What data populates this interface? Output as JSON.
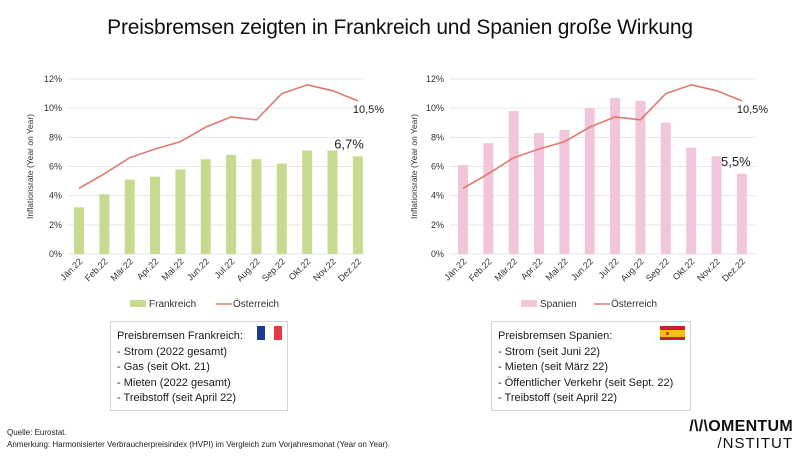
{
  "title": "Preisbremsen zeigten in Frankreich und Spanien große Wirkung",
  "colors": {
    "frankreich_bar": "#c8da8f",
    "spanien_bar": "#f1c6da",
    "oesterreich_line": "#e07a70",
    "grid": "#e6e6e6",
    "flag_fr_blue": "#1f3a93",
    "flag_fr_red": "#e63946",
    "flag_es_red": "#c8202e",
    "flag_es_yellow": "#f4c300"
  },
  "chart_data": [
    {
      "type": "bar",
      "title": "",
      "xlabel": "",
      "ylabel": "Inflationsrate (Year on Year)",
      "ylim": [
        0,
        12
      ],
      "yticks": [
        "0%",
        "2%",
        "4%",
        "6%",
        "8%",
        "10%",
        "12%"
      ],
      "grid": true,
      "legend": "bottom",
      "categories": [
        "Jän.22",
        "Feb.22",
        "Mär.22",
        "Apr.22",
        "Mai.22",
        "Jun.22",
        "Jul.22",
        "Aug.22",
        "Sep.22",
        "Okt.22",
        "Nov.22",
        "Dez.22"
      ],
      "series": [
        {
          "name": "Frankreich",
          "type": "bar",
          "values": [
            3.2,
            4.1,
            5.1,
            5.3,
            5.8,
            6.5,
            6.8,
            6.5,
            6.2,
            7.1,
            7.1,
            6.7
          ]
        },
        {
          "name": "Österreich",
          "type": "line",
          "values": [
            4.5,
            5.5,
            6.6,
            7.2,
            7.7,
            8.7,
            9.4,
            9.2,
            11.0,
            11.6,
            11.2,
            10.5
          ]
        }
      ],
      "annotations": [
        {
          "series": "Österreich",
          "category": "Dez.22",
          "text": "10,5%"
        },
        {
          "series": "Frankreich",
          "category": "Dez.22",
          "text": "6,7%"
        }
      ]
    },
    {
      "type": "bar",
      "title": "",
      "xlabel": "",
      "ylabel": "Inflationsrate (Year on Year)",
      "ylim": [
        0,
        12
      ],
      "yticks": [
        "0%",
        "2%",
        "4%",
        "6%",
        "8%",
        "10%",
        "12%"
      ],
      "grid": true,
      "legend": "bottom",
      "categories": [
        "Jän.22",
        "Feb.22",
        "Mär.22",
        "Apr.22",
        "Mai.22",
        "Jun.22",
        "Jul.22",
        "Aug.22",
        "Sep.22",
        "Okt.22",
        "Nov.22",
        "Dez.22"
      ],
      "series": [
        {
          "name": "Spanien",
          "type": "bar",
          "values": [
            6.1,
            7.6,
            9.8,
            8.3,
            8.5,
            10.0,
            10.7,
            10.5,
            9.0,
            7.3,
            6.7,
            5.5
          ]
        },
        {
          "name": "Österreich",
          "type": "line",
          "values": [
            4.5,
            5.5,
            6.6,
            7.2,
            7.7,
            8.7,
            9.4,
            9.2,
            11.0,
            11.6,
            11.2,
            10.5
          ]
        }
      ],
      "annotations": [
        {
          "series": "Österreich",
          "category": "Dez.22",
          "text": "10,5%"
        },
        {
          "series": "Spanien",
          "category": "Dez.22",
          "text": "5,5%"
        }
      ]
    }
  ],
  "boxes": {
    "frankreich": {
      "heading": "Preisbremsen Frankreich:",
      "flag": "flag-france-icon",
      "items": [
        "- Strom (2022 gesamt)",
        "- Gas (seit Okt. 21)",
        "- Mieten (2022 gesamt)",
        "- Treibstoff (seit April 22)"
      ]
    },
    "spanien": {
      "heading": "Preisbremsen Spanien:",
      "flag": "flag-spain-icon",
      "items": [
        "- Strom (seit Juni 22)",
        "- Mieten (seit März 22)",
        "- Öffentlicher Verkehr (seit Sept. 22)",
        "- Treibstoff (seit April 22)"
      ]
    }
  },
  "footer": {
    "source": "Quelle: Eurostat.",
    "note": "Anmerkung: Harmonisierter Verbraucherpreisindex (HVPI) im Vergleich zum Vorjahresmonat (Year on Year)."
  },
  "logo": {
    "line1": "/\\/\\OMENTUM",
    "line2": "/NSTITUT"
  }
}
